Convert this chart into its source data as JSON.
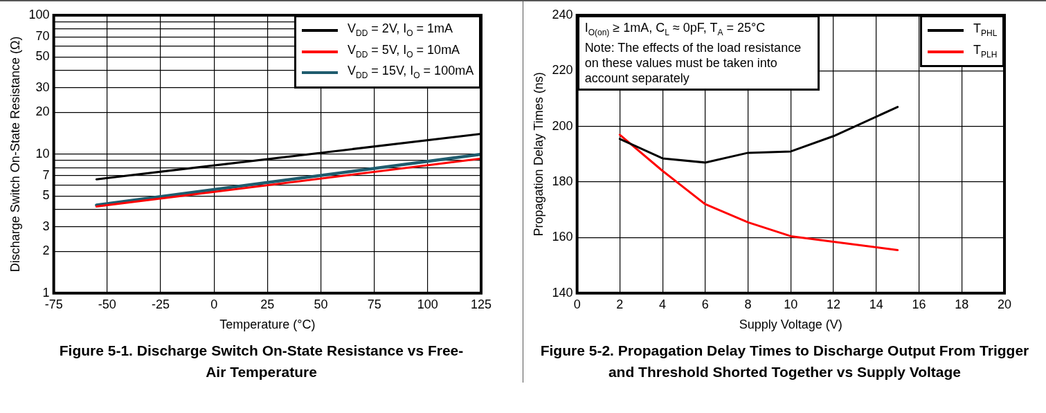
{
  "chart_data": [
    {
      "type": "line",
      "title": "Figure 5-1. Discharge Switch On-State Resistance vs Free-Air Temperature",
      "xlabel": "Temperature (°C)",
      "ylabel": "Discharge Switch On-State Resistance (Ω)",
      "xlim": [
        -75,
        125
      ],
      "xticks": [
        -75,
        -50,
        -25,
        0,
        25,
        50,
        75,
        100,
        125
      ],
      "ylim": [
        1,
        100
      ],
      "yticks": [
        1,
        2,
        3,
        {
          "value": 4,
          "label": null
        },
        5,
        {
          "value": 6,
          "label": null
        },
        7,
        {
          "value": 8,
          "label": null
        },
        {
          "value": 9,
          "label": null
        },
        10,
        20,
        30,
        {
          "value": 40,
          "label": null
        },
        50,
        {
          "value": 60,
          "label": null
        },
        70,
        {
          "value": 80,
          "label": null
        },
        {
          "value": 90,
          "label": null
        },
        100
      ],
      "log": "y",
      "grid": true,
      "legend": "top right",
      "series": [
        {
          "name": "V$_{DD}$ = 2V, I$_{O}$ = 1mA",
          "color": "#000000",
          "x": [
            -55,
            125
          ],
          "values": [
            6.6,
            14
          ]
        },
        {
          "name": "V$_{DD}$ = 5V, I$_{O}$ = 10mA",
          "color": "#ff0000",
          "x": [
            -55,
            125
          ],
          "values": [
            4.2,
            9.3
          ]
        },
        {
          "name": "V$_{DD}$ = 15V, I$_{O}$ = 100mA",
          "color": "#1f5c6e",
          "x": [
            -55,
            125
          ],
          "values": [
            4.3,
            10
          ]
        }
      ]
    },
    {
      "type": "line",
      "title": "Figure 5-2. Propagation Delay Times to Discharge Output From Trigger and Threshold Shorted Together vs Supply Voltage",
      "xlabel": "Supply Voltage (V)",
      "ylabel": "Propagation Delay Times (ns)",
      "xlim": [
        0,
        20
      ],
      "xticks": [
        0,
        2,
        4,
        6,
        8,
        10,
        12,
        14,
        16,
        18,
        20
      ],
      "ylim": [
        140,
        240
      ],
      "yticks": [
        140,
        160,
        180,
        200,
        220,
        240
      ],
      "grid": true,
      "legend": "top right",
      "annotations": [
        "I$_{O(on)}$ ≥ 1mA, C$_{L}$ ≈ 0pF, T$_{A}$ = 25°C",
        "Note: The effects of the load resistance on these values must be taken into account separately"
      ],
      "series": [
        {
          "name": "T$_{PHL}$",
          "color": "#000000",
          "x": [
            2,
            4,
            6,
            8,
            10,
            12,
            15
          ],
          "values": [
            195.5,
            188.5,
            187,
            190.5,
            191,
            196.5,
            207
          ]
        },
        {
          "name": "T$_{PLH}$",
          "color": "#ff0000",
          "x": [
            2,
            4,
            6,
            8,
            10,
            12,
            15
          ],
          "values": [
            197,
            184,
            172,
            165.5,
            160.5,
            158.5,
            155.5
          ]
        }
      ]
    }
  ]
}
